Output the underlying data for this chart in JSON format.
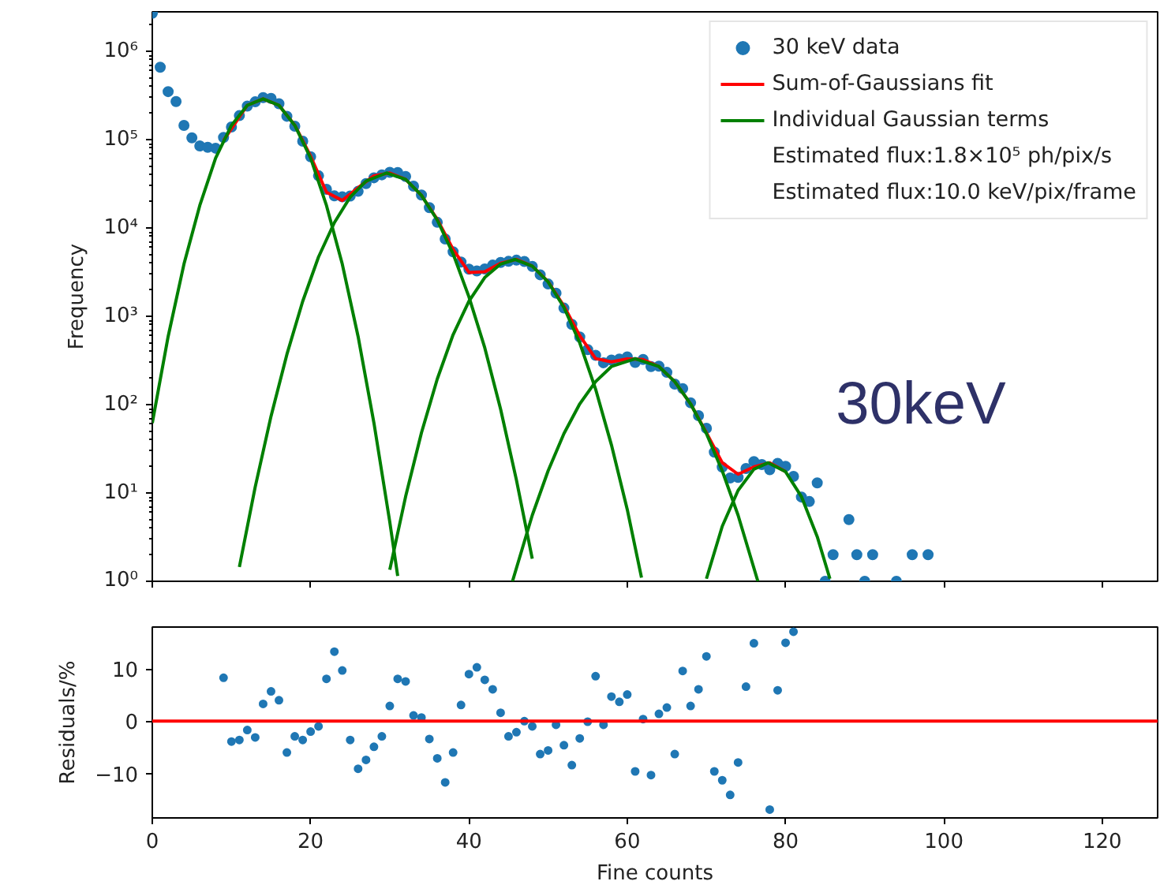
{
  "chart_data": [
    {
      "type": "scatter",
      "ylabel": "Frequency",
      "log": "y",
      "xlim": [
        0,
        127
      ],
      "ylim": [
        1,
        2800000
      ],
      "xticks": [
        0,
        20,
        40,
        60,
        80,
        100,
        120
      ],
      "yticks": [
        {
          "value": 1,
          "label": "10⁰"
        },
        {
          "value": 10,
          "label": "10¹"
        },
        {
          "value": 100,
          "label": "10²"
        },
        {
          "value": 1000,
          "label": "10³"
        },
        {
          "value": 10000,
          "label": "10⁴"
        },
        {
          "value": 100000,
          "label": "10⁵"
        },
        {
          "value": 1000000,
          "label": "10⁶"
        }
      ],
      "tick_labels": "y",
      "grid": false,
      "legend": "top right",
      "annotations": [
        "Estimated flux:1.8×10⁵ ph/pix/s",
        "Estimated flux:10.0 keV/pix/frame",
        "30keV"
      ],
      "series": [
        {
          "name": "30 keV data",
          "marker": "circle",
          "color": "#1f77b4",
          "x": [
            0,
            1,
            2,
            3,
            4,
            5,
            6,
            7,
            8,
            9,
            10,
            11,
            12,
            13,
            14,
            15,
            16,
            17,
            18,
            19,
            20,
            21,
            22,
            23,
            24,
            25,
            26,
            27,
            28,
            29,
            30,
            31,
            32,
            33,
            34,
            35,
            36,
            37,
            38,
            39,
            40,
            41,
            42,
            43,
            44,
            45,
            46,
            47,
            48,
            49,
            50,
            51,
            52,
            53,
            54,
            55,
            56,
            57,
            58,
            59,
            60,
            61,
            62,
            63,
            64,
            65,
            66,
            67,
            68,
            69,
            70,
            71,
            72,
            73,
            74,
            75,
            76,
            77,
            78,
            79,
            80,
            81,
            82,
            83,
            84,
            85,
            86,
            88,
            89,
            90,
            91,
            94,
            96,
            98
          ],
          "values": [
            2700000,
            660000,
            350000,
            270000,
            145000,
            105000,
            85000,
            82000,
            80000,
            106000,
            139000,
            187000,
            240000,
            268000,
            299000,
            293000,
            255000,
            184000,
            142000,
            96000,
            64000,
            39000,
            27400,
            23100,
            22500,
            23000,
            26000,
            31800,
            37000,
            40000,
            42700,
            42500,
            38300,
            29800,
            23600,
            17000,
            11600,
            7500,
            5380,
            4120,
            3420,
            3260,
            3440,
            3800,
            4070,
            4190,
            4320,
            4180,
            3670,
            2950,
            2320,
            1830,
            1240,
            810,
            584,
            420,
            362,
            298,
            320,
            328,
            347,
            300,
            325,
            270,
            273,
            232,
            171,
            152,
            105,
            75,
            54,
            29,
            19.6,
            14.8,
            15,
            18.9,
            22.7,
            21,
            18.3,
            21.6,
            20,
            15.4,
            9,
            8,
            13,
            1,
            2,
            5,
            2,
            1,
            2,
            1,
            2,
            2
          ]
        },
        {
          "name": "Sum-of-Gaussians fit",
          "type": "line",
          "color": "#ff0000",
          "x": [
            9,
            12,
            14,
            16,
            18,
            20,
            22,
            24,
            26,
            28,
            30,
            32,
            34,
            36,
            38,
            40,
            42,
            44,
            46,
            48,
            50,
            52,
            54,
            56,
            58,
            60,
            62,
            64,
            66,
            68,
            70,
            72,
            74,
            76,
            78,
            80
          ],
          "values": [
            98000,
            245000,
            290000,
            245000,
            146000,
            65000,
            25400,
            20500,
            28600,
            39000,
            42000,
            35500,
            23400,
            12500,
            5720,
            3140,
            3190,
            3990,
            4410,
            3706,
            2470,
            1307,
            602,
            332,
            305,
            330,
            324,
            270,
            182,
            102,
            48,
            22,
            16.3,
            19.7,
            22,
            17.4
          ]
        },
        {
          "name": "Individual Gaussian terms",
          "type": "line",
          "color": "#008000",
          "x": [
            0,
            2,
            4,
            6,
            8,
            10,
            12,
            14,
            16,
            18,
            20,
            22,
            24,
            26,
            28,
            30,
            31
          ],
          "values": [
            62,
            590,
            3900,
            18000,
            62000,
            145000,
            245000,
            290000,
            245000,
            145000,
            62000,
            18000,
            3900,
            590,
            62,
            4.7,
            1.15
          ]
        },
        {
          "type": "line",
          "color": "#008000",
          "x": [
            11,
            13,
            15,
            17,
            19,
            21,
            23,
            25,
            27,
            29.6,
            32,
            34,
            36,
            38,
            40,
            42,
            44,
            46,
            48
          ],
          "values": [
            1.45,
            11.7,
            74,
            370,
            1480,
            4700,
            11500,
            22400,
            34000,
            42000,
            35500,
            23400,
            12300,
            5100,
            1660,
            440,
            89,
            14,
            1.8
          ]
        },
        {
          "type": "line",
          "color": "#008000",
          "x": [
            30,
            32,
            34,
            36,
            38,
            40,
            42,
            44,
            45.8,
            48,
            50,
            52,
            54,
            56,
            58,
            60,
            61.8
          ],
          "values": [
            1.35,
            9.1,
            48,
            195,
            620,
            1480,
            2750,
            3900,
            4400,
            3700,
            2450,
            1260,
            500,
            150,
            35,
            6.5,
            1.1
          ]
        },
        {
          "type": "line",
          "color": "#008000",
          "x": [
            45.5,
            48,
            50,
            52,
            54,
            56,
            58,
            61,
            64,
            66,
            68,
            70,
            72,
            74,
            76.5
          ],
          "values": [
            1,
            5.6,
            17.8,
            47,
            102,
            182,
            270,
            330,
            270,
            182,
            102,
            47,
            17.8,
            5.6,
            1
          ]
        },
        {
          "type": "line",
          "color": "#008000",
          "x": [
            70,
            72,
            74,
            76,
            77.8,
            80,
            82,
            84,
            85.6
          ],
          "values": [
            1.07,
            4.2,
            10.7,
            18.6,
            22,
            17.4,
            9.1,
            3.2,
            1.07
          ]
        }
      ]
    },
    {
      "type": "scatter",
      "xlabel": "Fine counts",
      "ylabel": "Residuals/%",
      "xlim": [
        0,
        127
      ],
      "ylim": [
        -18.5,
        18
      ],
      "xticks": [
        0,
        20,
        40,
        60,
        80,
        100,
        120
      ],
      "yticks": [
        {
          "value": -10,
          "label": "−10"
        },
        0,
        10
      ],
      "grid": false,
      "ref_lines": [
        {
          "axis": "y",
          "value": 0,
          "color": "#ff0000"
        }
      ],
      "series": [
        {
          "marker": "circle",
          "color": "#1f77b4",
          "x": [
            9,
            10,
            11,
            12,
            13,
            14,
            15,
            16,
            17,
            18,
            19,
            20,
            21,
            22,
            23,
            24,
            25,
            26,
            27,
            28,
            29,
            30,
            31,
            32,
            33,
            34,
            35,
            36,
            37,
            38,
            39,
            40,
            41,
            42,
            43,
            44,
            45,
            46,
            47,
            48,
            49,
            50,
            51,
            52,
            53,
            54,
            55,
            56,
            57,
            58,
            59,
            60,
            61,
            62,
            63,
            64,
            65,
            66,
            67,
            68,
            69,
            70,
            71,
            72,
            73,
            74,
            75,
            76,
            78,
            79,
            80,
            81
          ],
          "values": [
            8.3,
            -3.9,
            -3.6,
            -1.7,
            -3.1,
            3.3,
            5.7,
            4.0,
            -6.0,
            -2.9,
            -3.6,
            -2.0,
            -1.0,
            8.1,
            13.3,
            9.7,
            -3.6,
            -9.1,
            -7.4,
            -4.9,
            -2.9,
            2.9,
            8.1,
            7.6,
            1.1,
            0.7,
            -3.4,
            -7.1,
            -11.7,
            -6.0,
            3.1,
            9.0,
            10.3,
            7.9,
            6.1,
            1.6,
            -2.9,
            -2.1,
            0,
            -1.0,
            -6.3,
            -5.6,
            -0.7,
            -4.6,
            -8.4,
            -3.3,
            -0.1,
            8.6,
            -0.7,
            4.7,
            3.7,
            5.1,
            -9.6,
            0.4,
            -10.3,
            1.4,
            2.6,
            -6.3,
            9.6,
            2.9,
            6.1,
            12.4,
            -9.6,
            -11.3,
            -14.1,
            -7.9,
            6.6,
            14.9,
            -16.9,
            5.9,
            15.0,
            17.1
          ]
        }
      ]
    }
  ]
}
